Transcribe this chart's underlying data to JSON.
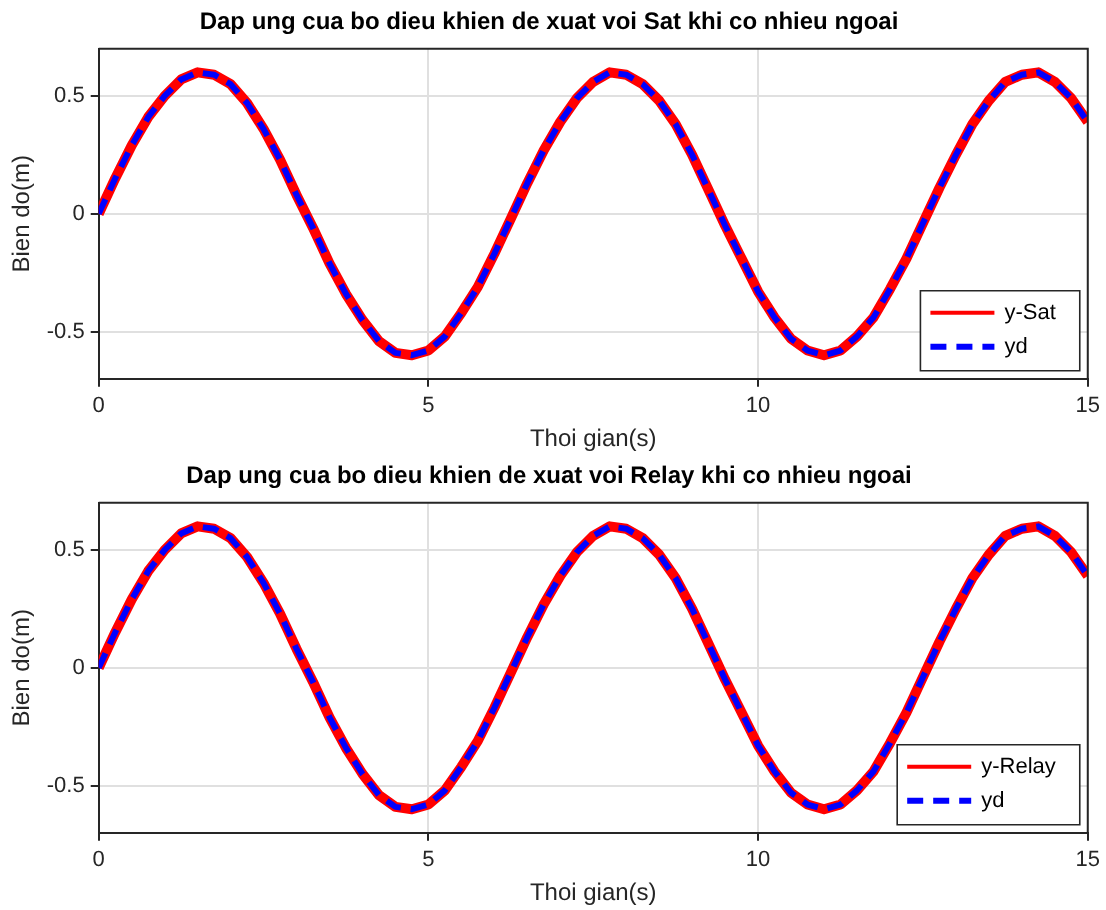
{
  "chart_data": [
    {
      "type": "line",
      "title": "Dap ung cua bo dieu khien de xuat voi Sat khi co nhieu ngoai",
      "xlabel": "Thoi gian(s)",
      "ylabel": "Bien do(m)",
      "xlim": [
        0,
        15
      ],
      "xticks": [
        0,
        5,
        10,
        15
      ],
      "ylim": [
        -0.7,
        0.7
      ],
      "yticks": [
        -0.5,
        0,
        0.5
      ],
      "grid": true,
      "legend": "bottom right",
      "x": [
        0,
        0.25,
        0.5,
        0.75,
        1,
        1.25,
        1.5,
        1.75,
        2,
        2.25,
        2.5,
        2.75,
        3,
        3.25,
        3.5,
        3.75,
        4,
        4.25,
        4.5,
        4.75,
        5,
        5.25,
        5.5,
        5.75,
        6,
        6.25,
        6.5,
        6.75,
        7,
        7.25,
        7.5,
        7.75,
        8,
        8.25,
        8.5,
        8.75,
        9,
        9.25,
        9.5,
        9.75,
        10,
        10.25,
        10.5,
        10.75,
        11,
        11.25,
        11.5,
        11.75,
        12,
        12.25,
        12.5,
        12.75,
        13,
        13.25,
        13.5,
        13.75,
        14,
        14.25,
        14.5,
        14.75,
        15
      ],
      "series": [
        {
          "name": "y-Sat",
          "color": "#ff0000",
          "line_style": "solid",
          "values": [
            0,
            0.15,
            0.29,
            0.41,
            0.5,
            0.57,
            0.6,
            0.59,
            0.55,
            0.47,
            0.36,
            0.23,
            0.08,
            -0.06,
            -0.21,
            -0.34,
            -0.45,
            -0.54,
            -0.59,
            -0.6,
            -0.58,
            -0.52,
            -0.42,
            -0.31,
            -0.17,
            -0.02,
            0.13,
            0.27,
            0.39,
            0.49,
            0.56,
            0.6,
            0.59,
            0.55,
            0.48,
            0.38,
            0.25,
            0.1,
            -0.05,
            -0.19,
            -0.33,
            -0.44,
            -0.53,
            -0.58,
            -0.6,
            -0.58,
            -0.52,
            -0.44,
            -0.32,
            -0.19,
            -0.04,
            0.11,
            0.25,
            0.38,
            0.48,
            0.56,
            0.59,
            0.6,
            0.56,
            0.49,
            0.39
          ]
        },
        {
          "name": "yd",
          "color": "#0000ff",
          "line_style": "dashed",
          "values": [
            0,
            0.15,
            0.29,
            0.41,
            0.5,
            0.57,
            0.6,
            0.59,
            0.55,
            0.47,
            0.36,
            0.23,
            0.08,
            -0.06,
            -0.21,
            -0.34,
            -0.45,
            -0.54,
            -0.59,
            -0.6,
            -0.58,
            -0.52,
            -0.42,
            -0.31,
            -0.17,
            -0.02,
            0.13,
            0.27,
            0.39,
            0.49,
            0.56,
            0.6,
            0.59,
            0.55,
            0.48,
            0.38,
            0.25,
            0.1,
            -0.05,
            -0.19,
            -0.33,
            -0.44,
            -0.53,
            -0.58,
            -0.6,
            -0.58,
            -0.52,
            -0.44,
            -0.32,
            -0.19,
            -0.04,
            0.11,
            0.25,
            0.38,
            0.48,
            0.56,
            0.59,
            0.6,
            0.56,
            0.49,
            0.39
          ]
        }
      ]
    },
    {
      "type": "line",
      "title": "Dap ung cua bo dieu khien de xuat voi Relay khi co nhieu ngoai",
      "xlabel": "Thoi gian(s)",
      "ylabel": "Bien do(m)",
      "xlim": [
        0,
        15
      ],
      "xticks": [
        0,
        5,
        10,
        15
      ],
      "ylim": [
        -0.7,
        0.7
      ],
      "yticks": [
        -0.5,
        0,
        0.5
      ],
      "grid": true,
      "legend": "bottom right",
      "x": [
        0,
        0.25,
        0.5,
        0.75,
        1,
        1.25,
        1.5,
        1.75,
        2,
        2.25,
        2.5,
        2.75,
        3,
        3.25,
        3.5,
        3.75,
        4,
        4.25,
        4.5,
        4.75,
        5,
        5.25,
        5.5,
        5.75,
        6,
        6.25,
        6.5,
        6.75,
        7,
        7.25,
        7.5,
        7.75,
        8,
        8.25,
        8.5,
        8.75,
        9,
        9.25,
        9.5,
        9.75,
        10,
        10.25,
        10.5,
        10.75,
        11,
        11.25,
        11.5,
        11.75,
        12,
        12.25,
        12.5,
        12.75,
        13,
        13.25,
        13.5,
        13.75,
        14,
        14.25,
        14.5,
        14.75,
        15
      ],
      "series": [
        {
          "name": "y-Relay",
          "color": "#ff0000",
          "line_style": "solid",
          "values": [
            0,
            0.15,
            0.29,
            0.41,
            0.5,
            0.57,
            0.6,
            0.59,
            0.55,
            0.47,
            0.36,
            0.23,
            0.08,
            -0.06,
            -0.21,
            -0.34,
            -0.45,
            -0.54,
            -0.59,
            -0.6,
            -0.58,
            -0.52,
            -0.42,
            -0.31,
            -0.17,
            -0.02,
            0.13,
            0.27,
            0.39,
            0.49,
            0.56,
            0.6,
            0.59,
            0.55,
            0.48,
            0.38,
            0.25,
            0.1,
            -0.05,
            -0.19,
            -0.33,
            -0.44,
            -0.53,
            -0.58,
            -0.6,
            -0.58,
            -0.52,
            -0.44,
            -0.32,
            -0.19,
            -0.04,
            0.11,
            0.25,
            0.38,
            0.48,
            0.56,
            0.59,
            0.6,
            0.56,
            0.49,
            0.39
          ]
        },
        {
          "name": "yd",
          "color": "#0000ff",
          "line_style": "dashed",
          "values": [
            0,
            0.15,
            0.29,
            0.41,
            0.5,
            0.57,
            0.6,
            0.59,
            0.55,
            0.47,
            0.36,
            0.23,
            0.08,
            -0.06,
            -0.21,
            -0.34,
            -0.45,
            -0.54,
            -0.59,
            -0.6,
            -0.58,
            -0.52,
            -0.42,
            -0.31,
            -0.17,
            -0.02,
            0.13,
            0.27,
            0.39,
            0.49,
            0.56,
            0.6,
            0.59,
            0.55,
            0.48,
            0.38,
            0.25,
            0.1,
            -0.05,
            -0.19,
            -0.33,
            -0.44,
            -0.53,
            -0.58,
            -0.6,
            -0.58,
            -0.52,
            -0.44,
            -0.32,
            -0.19,
            -0.04,
            0.11,
            0.25,
            0.38,
            0.48,
            0.56,
            0.59,
            0.6,
            0.56,
            0.49,
            0.39
          ]
        }
      ]
    }
  ]
}
